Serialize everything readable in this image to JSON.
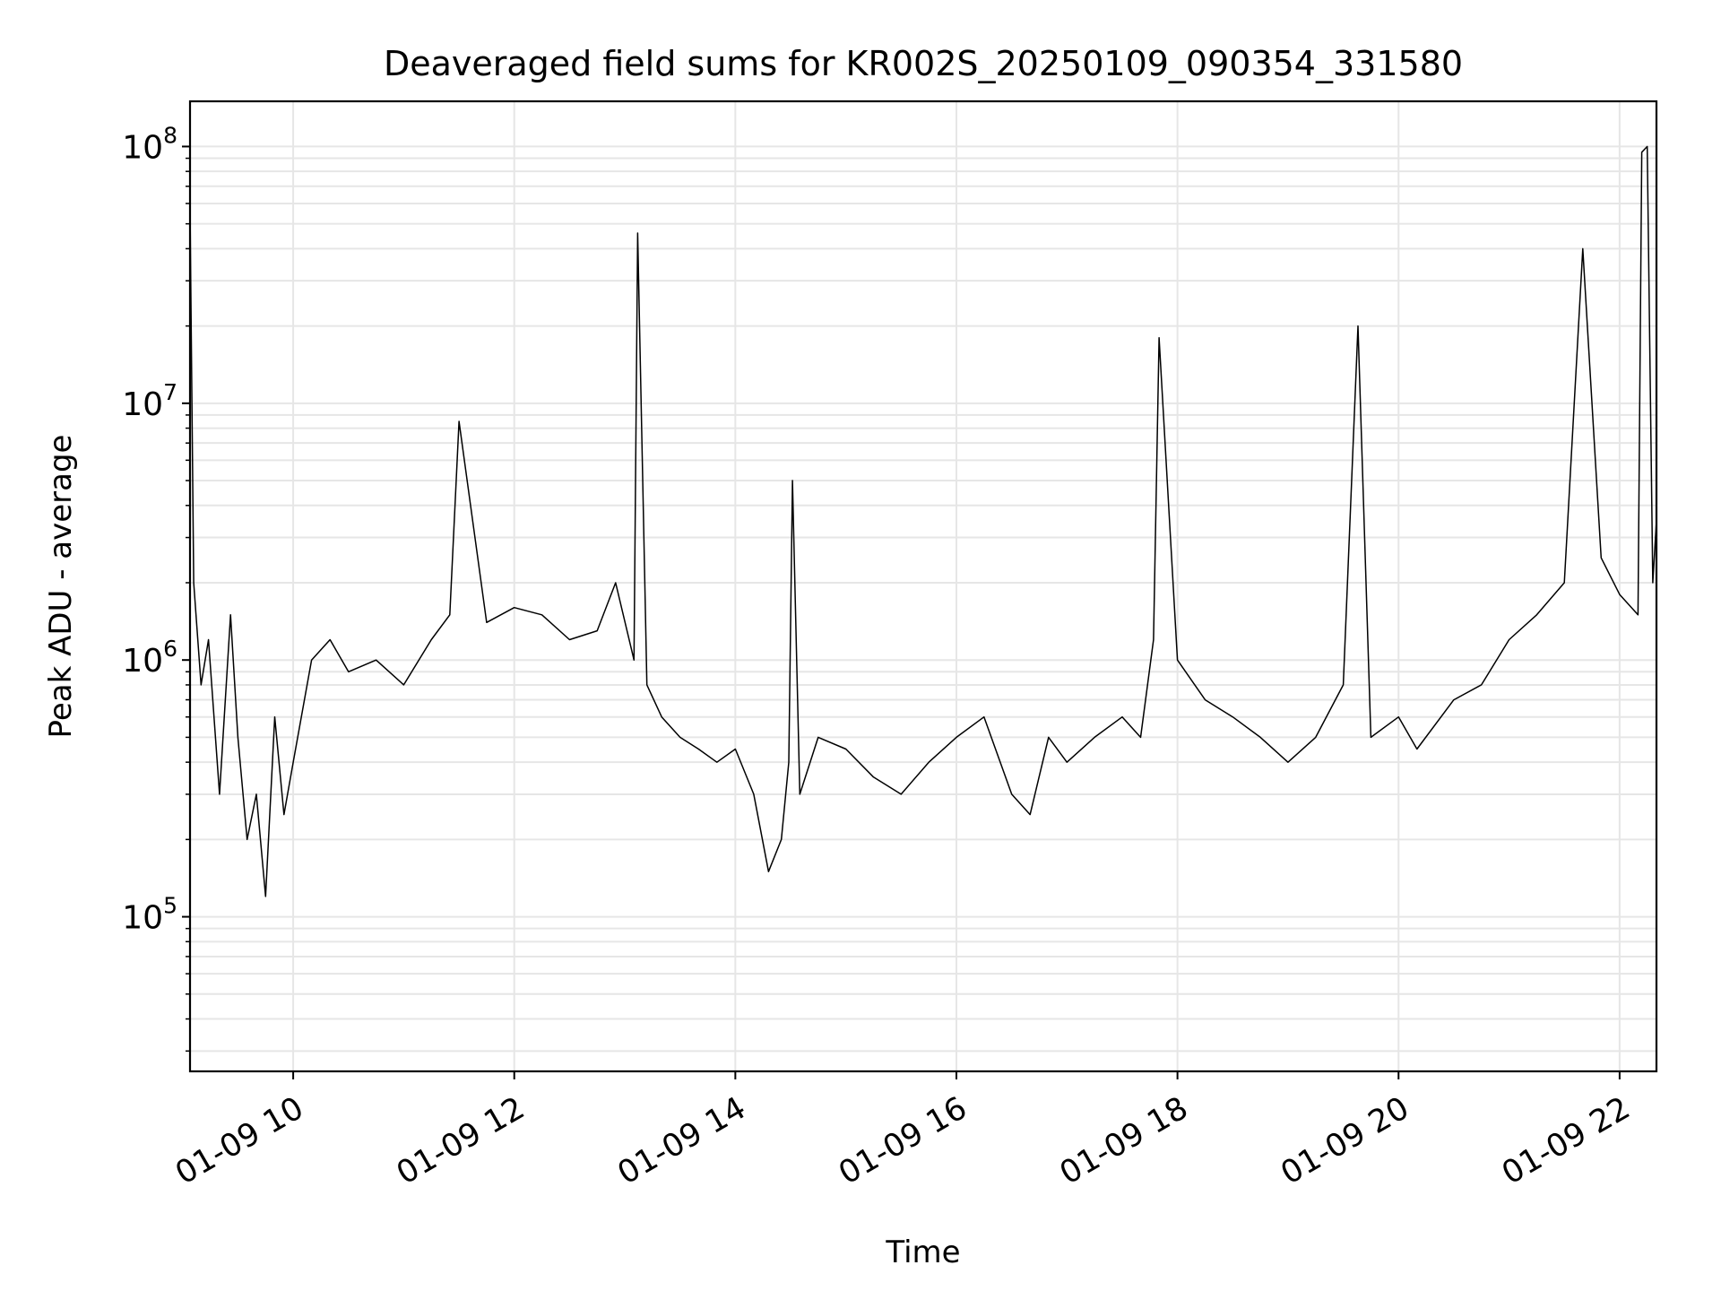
{
  "chart_data": {
    "type": "line",
    "title": "Deaveraged field sums for KR002S_20250109_090354_331580",
    "xlabel": "Time",
    "ylabel": "Peak ADU - average",
    "yscale": "log",
    "grid": "on (major and minor)",
    "legend": "none",
    "xlim": [
      "01-09 09:04",
      "01-09 22:20"
    ],
    "ylim": [
      25000,
      150000000
    ],
    "x_ticks": [
      "01-09 10",
      "01-09 12",
      "01-09 14",
      "01-09 16",
      "01-09 18",
      "01-09 20",
      "01-09 22"
    ],
    "y_ticks": [
      {
        "base": "10",
        "exp": "5"
      },
      {
        "base": "10",
        "exp": "6"
      },
      {
        "base": "10",
        "exp": "7"
      },
      {
        "base": "10",
        "exp": "8"
      }
    ],
    "line_color": "#000000",
    "series": [
      {
        "x": [
          "01-09 09:04",
          "01-09 09:06",
          "01-09 09:10",
          "01-09 09:14",
          "01-09 09:20",
          "01-09 09:26",
          "01-09 09:30",
          "01-09 09:35",
          "01-09 09:40",
          "01-09 09:45",
          "01-09 09:50",
          "01-09 09:55",
          "01-09 10:00",
          "01-09 10:10",
          "01-09 10:20",
          "01-09 10:30",
          "01-09 10:45",
          "01-09 11:00",
          "01-09 11:15",
          "01-09 11:25",
          "01-09 11:30",
          "01-09 11:45",
          "01-09 12:00",
          "01-09 12:15",
          "01-09 12:30",
          "01-09 12:45",
          "01-09 12:55",
          "01-09 13:05",
          "01-09 13:07",
          "01-09 13:12",
          "01-09 13:20",
          "01-09 13:30",
          "01-09 13:40",
          "01-09 13:50",
          "01-09 14:00",
          "01-09 14:10",
          "01-09 14:18",
          "01-09 14:25",
          "01-09 14:29",
          "01-09 14:31",
          "01-09 14:35",
          "01-09 14:45",
          "01-09 15:00",
          "01-09 15:15",
          "01-09 15:30",
          "01-09 15:45",
          "01-09 16:00",
          "01-09 16:15",
          "01-09 16:30",
          "01-09 16:40",
          "01-09 16:50",
          "01-09 17:00",
          "01-09 17:15",
          "01-09 17:30",
          "01-09 17:40",
          "01-09 17:47",
          "01-09 17:50",
          "01-09 18:00",
          "01-09 18:15",
          "01-09 18:30",
          "01-09 18:45",
          "01-09 19:00",
          "01-09 19:15",
          "01-09 19:30",
          "01-09 19:38",
          "01-09 19:45",
          "01-09 20:00",
          "01-09 20:10",
          "01-09 20:30",
          "01-09 20:45",
          "01-09 21:00",
          "01-09 21:15",
          "01-09 21:30",
          "01-09 21:40",
          "01-09 21:50",
          "01-09 22:00",
          "01-09 22:10",
          "01-09 22:12",
          "01-09 22:15",
          "01-09 22:18",
          "01-09 22:20"
        ],
        "y": [
          58000000,
          2000000,
          800000,
          1200000,
          300000,
          1500000,
          500000,
          200000,
          300000,
          120000,
          600000,
          250000,
          400000,
          1000000,
          1200000,
          900000,
          1000000,
          800000,
          1200000,
          1500000,
          8500000,
          1400000,
          1600000,
          1500000,
          1200000,
          1300000,
          2000000,
          1000000,
          46000000,
          800000,
          600000,
          500000,
          450000,
          400000,
          450000,
          300000,
          150000,
          200000,
          400000,
          5000000,
          300000,
          500000,
          450000,
          350000,
          300000,
          400000,
          500000,
          600000,
          300000,
          250000,
          500000,
          400000,
          500000,
          600000,
          500000,
          1200000,
          18000000,
          1000000,
          700000,
          600000,
          500000,
          400000,
          500000,
          800000,
          20000000,
          500000,
          600000,
          450000,
          700000,
          800000,
          1200000,
          1500000,
          2000000,
          40000000,
          2500000,
          1800000,
          1500000,
          95000000,
          100000000,
          2000000,
          3500000
        ]
      }
    ]
  }
}
